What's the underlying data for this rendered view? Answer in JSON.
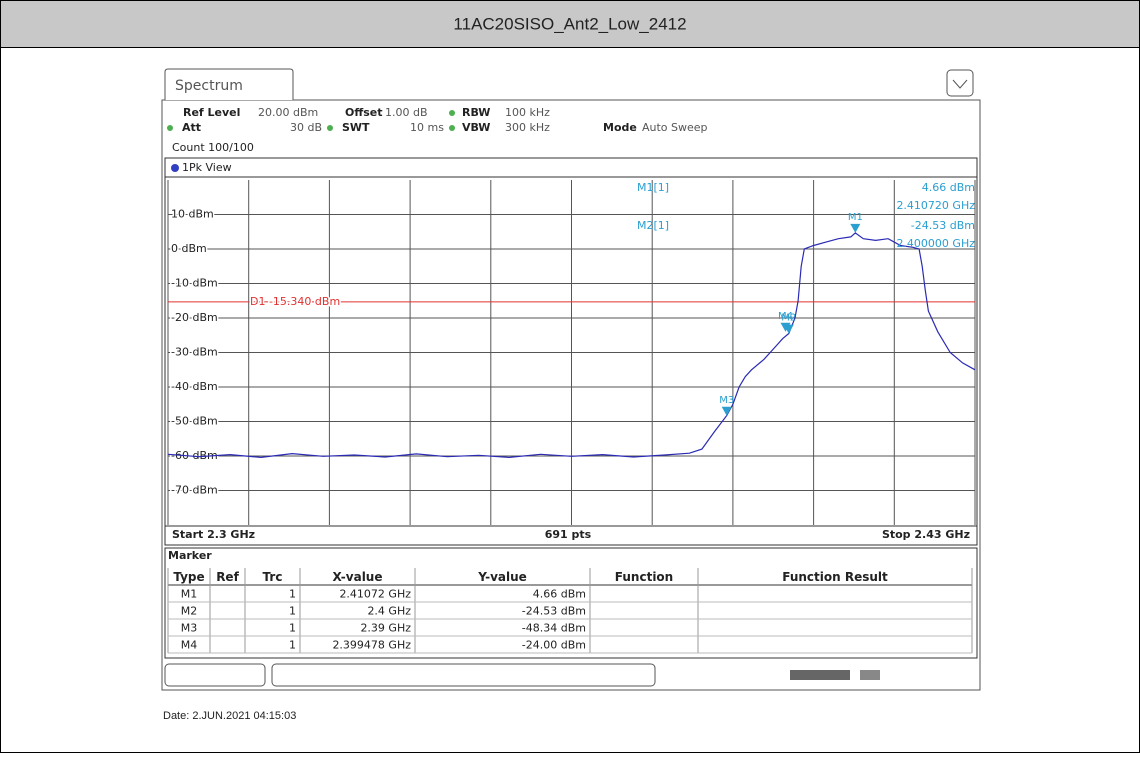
{
  "header": {
    "title": "11AC20SISO_Ant2_Low_2412"
  },
  "screen": {
    "tab": "Spectrum",
    "settings": [
      [
        "Ref Level",
        "20.00 dBm"
      ],
      [
        "Offset",
        "1.00 dB"
      ],
      [
        "RBW",
        "100 kHz"
      ],
      [
        "Att",
        "30 dB"
      ],
      [
        "SWT",
        "10 ms"
      ],
      [
        "VBW",
        "300 kHz"
      ],
      [
        "Mode",
        "Auto Sweep"
      ]
    ],
    "count": "Count 100/100",
    "view": "1Pk View"
  },
  "plot": {
    "xlim": [
      2.3,
      2.43
    ],
    "xticks": [
      2.3,
      2.313,
      2.326,
      2.339,
      2.352,
      2.365,
      2.378,
      2.391,
      2.404,
      2.417,
      2.43
    ],
    "ylim": [
      -80,
      20
    ],
    "yticks": [
      {
        "value": 10,
        "label": "10 dBm"
      },
      {
        "value": 0,
        "label": "0 dBm"
      },
      {
        "value": -10,
        "label": "-10 dBm"
      },
      {
        "value": -20,
        "label": "-20 dBm"
      },
      {
        "value": -30,
        "label": "-30 dBm"
      },
      {
        "value": -40,
        "label": "-40 dBm"
      },
      {
        "value": -50,
        "label": "-50 dBm"
      },
      {
        "value": -60,
        "label": "-60 dBm"
      },
      {
        "value": -70,
        "label": "-70 dBm"
      }
    ],
    "trace": {
      "color": "#2a2ab4",
      "x": [
        2.3,
        2.305,
        2.31,
        2.315,
        2.32,
        2.325,
        2.33,
        2.335,
        2.34,
        2.345,
        2.35,
        2.355,
        2.36,
        2.365,
        2.37,
        2.375,
        2.38,
        2.384,
        2.386,
        2.388,
        2.39,
        2.391,
        2.392,
        2.393,
        2.394,
        2.396,
        2.398,
        2.399,
        2.4,
        2.401,
        2.4015,
        2.402,
        2.4025,
        2.404,
        2.406,
        2.408,
        2.41,
        2.41072,
        2.412,
        2.414,
        2.416,
        2.418,
        2.42,
        2.421,
        2.4215,
        2.422,
        2.4225,
        2.424,
        2.426,
        2.428,
        2.43
      ],
      "values": [
        -59.5,
        -60.2,
        -59.6,
        -60.4,
        -59.3,
        -60.1,
        -59.7,
        -60.3,
        -59.4,
        -60.2,
        -59.8,
        -60.4,
        -59.5,
        -60.1,
        -59.6,
        -60.3,
        -59.7,
        -59.2,
        -58,
        -53,
        -48.3,
        -45,
        -40,
        -37,
        -35,
        -32,
        -28,
        -26,
        -24.5,
        -20,
        -15,
        -5,
        0,
        1,
        2,
        3,
        3.5,
        4.66,
        3,
        2.5,
        3,
        1,
        0.5,
        0,
        -5,
        -12,
        -18,
        -24,
        -30,
        -33,
        -35
      ]
    },
    "display_line": {
      "label": "D1 -15.340 dBm",
      "value": -15.34,
      "color": "#e03030"
    },
    "markers": [
      {
        "name": "M1",
        "x": 2.41072,
        "y": 4.66
      },
      {
        "name": "M2",
        "x": 2.4,
        "y": -24.53
      },
      {
        "name": "M3",
        "x": 2.39,
        "y": -48.34
      },
      {
        "name": "M4",
        "x": 2.399478,
        "y": -24.0
      }
    ],
    "readouts": [
      {
        "label": "M1[1]",
        "y": "4.66 dBm",
        "x": "2.410720 GHz"
      },
      {
        "label": "M2[1]",
        "y": "-24.53 dBm",
        "x": "2.400000 GHz"
      }
    ]
  },
  "footer": {
    "start": "Start 2.3 GHz",
    "points": "691 pts",
    "stop": "Stop 2.43 GHz"
  },
  "table": {
    "title": "Marker",
    "columns": [
      "Type",
      "Ref",
      "Trc",
      "X-value",
      "Y-value",
      "Function",
      "Function Result"
    ],
    "rows": [
      {
        "type": "M1",
        "trc": "1",
        "x": "2.41072 GHz",
        "y": "4.66 dBm"
      },
      {
        "type": "M2",
        "trc": "1",
        "x": "2.4 GHz",
        "y": "-24.53 dBm"
      },
      {
        "type": "M3",
        "trc": "1",
        "x": "2.39 GHz",
        "y": "-48.34 dBm"
      },
      {
        "type": "M4",
        "trc": "1",
        "x": "2.399478 GHz",
        "y": "-24.00 dBm"
      }
    ]
  },
  "date": "Date: 2.JUN.2021 04:15:03"
}
